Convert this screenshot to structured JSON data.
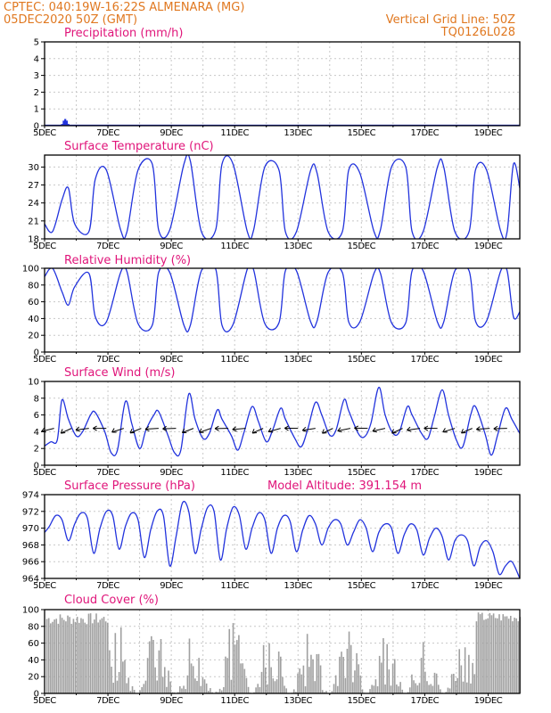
{
  "header": {
    "line1": "CPTEC:   040:19W-16:22S   ALMENARA (MG)",
    "line2": "05DEC2020 50Z (GMT)",
    "grid_note": "Vertical Grid Line: 50Z",
    "run_id": "TQ0126L028"
  },
  "colors": {
    "header": "#e07820",
    "title": "#e0157a",
    "line": "#2233dd",
    "cloud": "#a0a0a0",
    "grid": "#c8c8c8"
  },
  "x_ticks": [
    "5DEC",
    "7DEC",
    "9DEC",
    "11DEC",
    "13DEC",
    "15DEC",
    "17DEC",
    "19DEC"
  ],
  "x_range_days": [
    5,
    20
  ],
  "chart_data": [
    {
      "id": "precip",
      "type": "bar",
      "title": "Precipitation (mm/h)",
      "ylim": [
        0,
        5
      ],
      "yticks": [
        0,
        1,
        2,
        3,
        4,
        5
      ],
      "x": [
        5.55,
        5.6,
        5.65,
        5.7,
        5.75
      ],
      "values": [
        0.1,
        0.3,
        0.4,
        0.3,
        0.1
      ]
    },
    {
      "id": "temp",
      "type": "line",
      "title": "Surface Temperature (nC)",
      "ylim": [
        18,
        32
      ],
      "yticks": [
        18,
        21,
        24,
        27,
        30
      ],
      "x": [
        5.0,
        5.25,
        5.55,
        5.75,
        5.95,
        6.4,
        6.6,
        6.95,
        7.4,
        7.6,
        7.95,
        8.4,
        8.6,
        8.95,
        9.4,
        9.6,
        9.95,
        10.4,
        10.6,
        10.95,
        11.4,
        11.6,
        11.95,
        12.4,
        12.6,
        12.95,
        13.4,
        13.6,
        13.95,
        14.4,
        14.6,
        14.95,
        15.4,
        15.6,
        15.95,
        16.4,
        16.6,
        16.95,
        17.4,
        17.6,
        17.95,
        18.4,
        18.6,
        18.95,
        19.4,
        19.6,
        19.8,
        20.0
      ],
      "values": [
        20.5,
        19.2,
        24.5,
        26.5,
        20.5,
        19.2,
        28,
        29.5,
        19.5,
        19.2,
        29.5,
        30.5,
        19.5,
        19.5,
        30.5,
        31,
        19.2,
        19.5,
        30.5,
        30.5,
        19.2,
        19.5,
        30,
        29.5,
        19.2,
        19.2,
        29.5,
        29,
        19.2,
        19.2,
        29.5,
        29,
        19.2,
        19.5,
        30,
        30,
        19.2,
        19.2,
        30,
        30,
        19.2,
        19.2,
        29.5,
        29.5,
        19.2,
        19.2,
        30.5,
        26.5
      ]
    },
    {
      "id": "rh",
      "type": "line",
      "title": "Relative Humidity (%)",
      "ylim": [
        0,
        100
      ],
      "yticks": [
        0,
        20,
        40,
        60,
        80,
        100
      ],
      "x": [
        5.0,
        5.25,
        5.55,
        5.75,
        5.95,
        6.4,
        6.6,
        6.95,
        7.4,
        7.6,
        7.95,
        8.4,
        8.6,
        8.95,
        9.4,
        9.6,
        9.95,
        10.4,
        10.6,
        10.95,
        11.4,
        11.6,
        11.95,
        12.4,
        12.6,
        12.95,
        13.4,
        13.6,
        13.95,
        14.4,
        14.6,
        14.95,
        15.4,
        15.6,
        15.95,
        16.4,
        16.6,
        16.95,
        17.4,
        17.6,
        17.95,
        18.4,
        18.6,
        18.95,
        19.4,
        19.6,
        19.8,
        20.0
      ],
      "values": [
        90,
        100,
        72,
        56,
        78,
        94,
        42,
        36,
        95,
        96,
        34,
        32,
        95,
        95,
        32,
        32,
        97,
        99,
        32,
        33,
        99,
        98,
        34,
        35,
        97,
        97,
        36,
        37,
        95,
        95,
        36,
        36,
        94,
        94,
        35,
        35,
        97,
        97,
        36,
        36,
        97,
        97,
        37,
        37,
        97,
        97,
        42,
        48
      ]
    },
    {
      "id": "wind",
      "type": "line",
      "title": "Surface Wind (m/s)",
      "ylim": [
        0,
        10
      ],
      "yticks": [
        0,
        2,
        4,
        6,
        8,
        10
      ],
      "x": [
        5.0,
        5.2,
        5.4,
        5.55,
        5.75,
        6.0,
        6.2,
        6.45,
        6.6,
        6.9,
        7.1,
        7.3,
        7.55,
        7.75,
        8.0,
        8.2,
        8.45,
        8.6,
        8.9,
        9.1,
        9.3,
        9.55,
        9.75,
        10.0,
        10.2,
        10.45,
        10.6,
        10.9,
        11.1,
        11.3,
        11.55,
        11.75,
        12.0,
        12.2,
        12.45,
        12.6,
        12.9,
        13.1,
        13.3,
        13.55,
        13.75,
        14.0,
        14.2,
        14.45,
        14.6,
        14.9,
        15.1,
        15.3,
        15.55,
        15.75,
        16.0,
        16.2,
        16.45,
        16.6,
        16.9,
        17.1,
        17.3,
        17.55,
        17.75,
        18.0,
        18.2,
        18.45,
        18.6,
        18.9,
        19.1,
        19.3,
        19.55,
        19.75,
        20.0
      ],
      "values": [
        2.3,
        2.8,
        3.0,
        7.8,
        5.5,
        3.5,
        4.0,
        6.0,
        6.3,
        4.0,
        1.5,
        1.8,
        7.6,
        5.0,
        2.0,
        4.2,
        6.0,
        6.4,
        3.5,
        1.5,
        1.8,
        8.5,
        5.5,
        3.2,
        3.8,
        6.6,
        5.5,
        3.5,
        1.8,
        4.0,
        7.0,
        5.2,
        2.8,
        4.2,
        6.8,
        5.5,
        3.2,
        2.2,
        4.2,
        7.5,
        6.0,
        3.6,
        4.2,
        7.8,
        6.5,
        3.8,
        3.4,
        5.0,
        9.3,
        6.0,
        3.8,
        4.0,
        7.0,
        6.0,
        3.8,
        3.2,
        5.8,
        9.0,
        6.0,
        3.0,
        2.2,
        6.0,
        7.0,
        3.8,
        1.2,
        3.6,
        6.8,
        5.5,
        3.8
      ]
    },
    {
      "id": "pressure",
      "type": "line",
      "title": "Surface Pressure (hPa)",
      "ylim": [
        964,
        974
      ],
      "yticks": [
        964,
        966,
        968,
        970,
        972,
        974
      ],
      "x": [
        5.0,
        5.15,
        5.35,
        5.55,
        5.75,
        5.95,
        6.15,
        6.35,
        6.55,
        6.75,
        6.95,
        7.15,
        7.35,
        7.55,
        7.75,
        7.95,
        8.15,
        8.35,
        8.55,
        8.75,
        8.95,
        9.15,
        9.35,
        9.55,
        9.75,
        9.95,
        10.15,
        10.35,
        10.55,
        10.75,
        10.95,
        11.15,
        11.35,
        11.55,
        11.75,
        11.95,
        12.15,
        12.35,
        12.55,
        12.75,
        12.95,
        13.15,
        13.35,
        13.55,
        13.75,
        13.95,
        14.15,
        14.35,
        14.55,
        14.75,
        14.95,
        15.15,
        15.35,
        15.55,
        15.75,
        15.95,
        16.15,
        16.35,
        16.55,
        16.75,
        16.95,
        17.15,
        17.35,
        17.55,
        17.75,
        17.95,
        18.15,
        18.35,
        18.55,
        18.75,
        18.95,
        19.15,
        19.35,
        19.55,
        19.75,
        20.0
      ],
      "values": [
        969.5,
        970.2,
        971.5,
        971.0,
        968.5,
        970.5,
        971.8,
        971.2,
        967.0,
        970.0,
        972.0,
        971.5,
        967.5,
        970.2,
        971.8,
        971.0,
        966.5,
        969.8,
        972.0,
        971.5,
        965.5,
        969.0,
        973.0,
        972.0,
        967.0,
        970.0,
        972.5,
        972.0,
        966.2,
        970.0,
        972.5,
        971.5,
        967.5,
        970.0,
        971.8,
        971.0,
        967.0,
        970.0,
        971.5,
        970.8,
        967.2,
        969.8,
        971.5,
        970.5,
        968.0,
        970.0,
        971.0,
        970.5,
        968.0,
        969.5,
        971.0,
        970.0,
        967.2,
        969.5,
        970.5,
        970.0,
        967.0,
        969.2,
        970.5,
        969.8,
        966.8,
        968.8,
        970.0,
        969.0,
        966.2,
        968.5,
        969.2,
        968.5,
        965.5,
        967.8,
        968.5,
        967.2,
        964.5,
        965.5,
        966.0,
        964.0
      ]
    },
    {
      "id": "cloud",
      "type": "bar",
      "title": "Cloud Cover (%)",
      "ylim": [
        0,
        100
      ],
      "yticks": [
        0,
        20,
        40,
        60,
        80,
        100
      ]
    }
  ],
  "model_altitude": "Model Altitude: 391.154 m"
}
